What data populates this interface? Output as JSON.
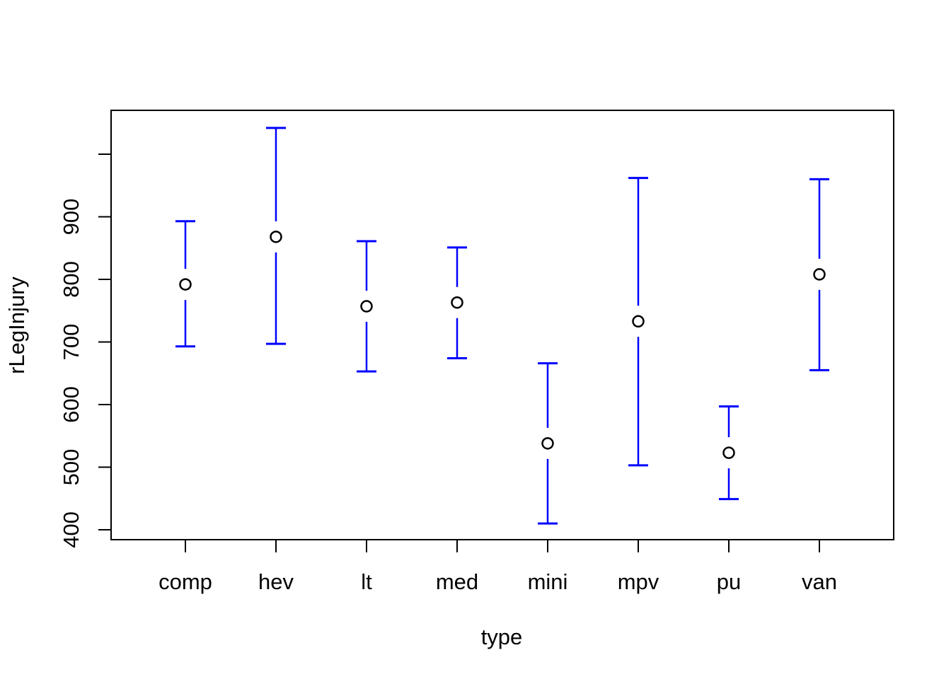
{
  "figure": {
    "background": "#FFFFFF"
  },
  "chart_data": {
    "type": "errorbar",
    "title": "",
    "xlabel": "type",
    "ylabel": "rLegInjury",
    "categories": [
      "comp",
      "hev",
      "lt",
      "med",
      "mini",
      "mpv",
      "pu",
      "van"
    ],
    "series": [
      {
        "name": "mean rLegInjury",
        "values": [
          792,
          868,
          757,
          763,
          538,
          733,
          523,
          808
        ]
      }
    ],
    "error_low": [
      693,
      697,
      653,
      674,
      410,
      503,
      449,
      655
    ],
    "error_high": [
      893,
      1042,
      861,
      851,
      666,
      962,
      597,
      960
    ],
    "ylim": [
      375,
      1065
    ],
    "yticks_labeled": [
      400,
      500,
      600,
      700,
      800,
      900
    ],
    "yticks_unlabeled": [
      1000
    ],
    "grid": false,
    "legend": "none",
    "colors": {
      "errorbar": "#0000FF",
      "point_stroke": "#000000",
      "point_fill": "#FFFFFF",
      "axis": "#000000",
      "background": "#FFFFFF"
    }
  }
}
